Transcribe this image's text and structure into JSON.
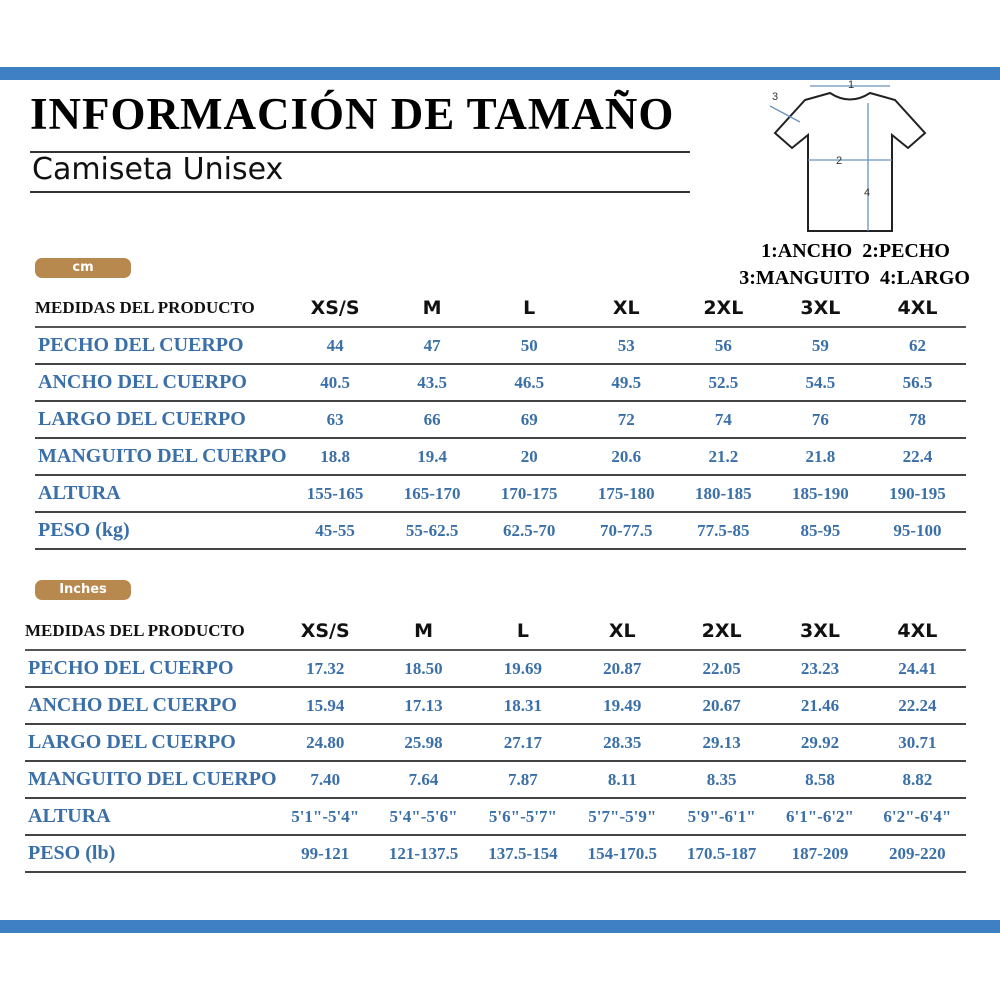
{
  "title": "INFORMACIÓN DE TAMAÑO",
  "subtitle": "Camiseta Unisex",
  "diagram": {
    "labels": [
      "1",
      "2",
      "3",
      "4"
    ],
    "legend_line1": "1:ANCHO  2:PECHO",
    "legend_line2": "3:MANGUITO  4:LARGO"
  },
  "header_label": "MEDIDAS DEL PRODUCTO",
  "sizes": [
    "XS/S",
    "M",
    "L",
    "XL",
    "2XL",
    "3XL",
    "4XL"
  ],
  "cm": {
    "unit": "cm",
    "rows": [
      {
        "label": "PECHO DEL CUERPO",
        "values": [
          "44",
          "47",
          "50",
          "53",
          "56",
          "59",
          "62"
        ]
      },
      {
        "label": "ANCHO DEL CUERPO",
        "values": [
          "40.5",
          "43.5",
          "46.5",
          "49.5",
          "52.5",
          "54.5",
          "56.5"
        ]
      },
      {
        "label": "LARGO DEL CUERPO",
        "values": [
          "63",
          "66",
          "69",
          "72",
          "74",
          "76",
          "78"
        ]
      },
      {
        "label": "MANGUITO DEL CUERPO",
        "values": [
          "18.8",
          "19.4",
          "20",
          "20.6",
          "21.2",
          "21.8",
          "22.4"
        ]
      },
      {
        "label": "ALTURA",
        "values": [
          "155-165",
          "165-170",
          "170-175",
          "175-180",
          "180-185",
          "185-190",
          "190-195"
        ]
      },
      {
        "label": "PESO (kg)",
        "values": [
          "45-55",
          "55-62.5",
          "62.5-70",
          "70-77.5",
          "77.5-85",
          "85-95",
          "95-100"
        ]
      }
    ]
  },
  "inches": {
    "unit": "Inches",
    "rows": [
      {
        "label": "PECHO DEL CUERPO",
        "values": [
          "17.32",
          "18.50",
          "19.69",
          "20.87",
          "22.05",
          "23.23",
          "24.41"
        ]
      },
      {
        "label": "ANCHO DEL CUERPO",
        "values": [
          "15.94",
          "17.13",
          "18.31",
          "19.49",
          "20.67",
          "21.46",
          "22.24"
        ]
      },
      {
        "label": "LARGO DEL CUERPO",
        "values": [
          "24.80",
          "25.98",
          "27.17",
          "28.35",
          "29.13",
          "29.92",
          "30.71"
        ]
      },
      {
        "label": "MANGUITO DEL CUERPO",
        "values": [
          "7.40",
          "7.64",
          "7.87",
          "8.11",
          "8.35",
          "8.58",
          "8.82"
        ]
      },
      {
        "label": "ALTURA",
        "values": [
          "5'1\"-5'4\"",
          "5'4\"-5'6\"",
          "5'6\"-5'7\"",
          "5'7\"-5'9\"",
          "5'9\"-6'1\"",
          "6'1\"-6'2\"",
          "6'2\"-6'4\""
        ]
      },
      {
        "label": "PESO (lb)",
        "values": [
          "99-121",
          "121-137.5",
          "137.5-154",
          "154-170.5",
          "170.5-187",
          "187-209",
          "209-220"
        ]
      }
    ]
  },
  "colors": {
    "bar": "#3f7fc4",
    "badge": "#b8894f",
    "value_text": "#3a6fa8"
  }
}
